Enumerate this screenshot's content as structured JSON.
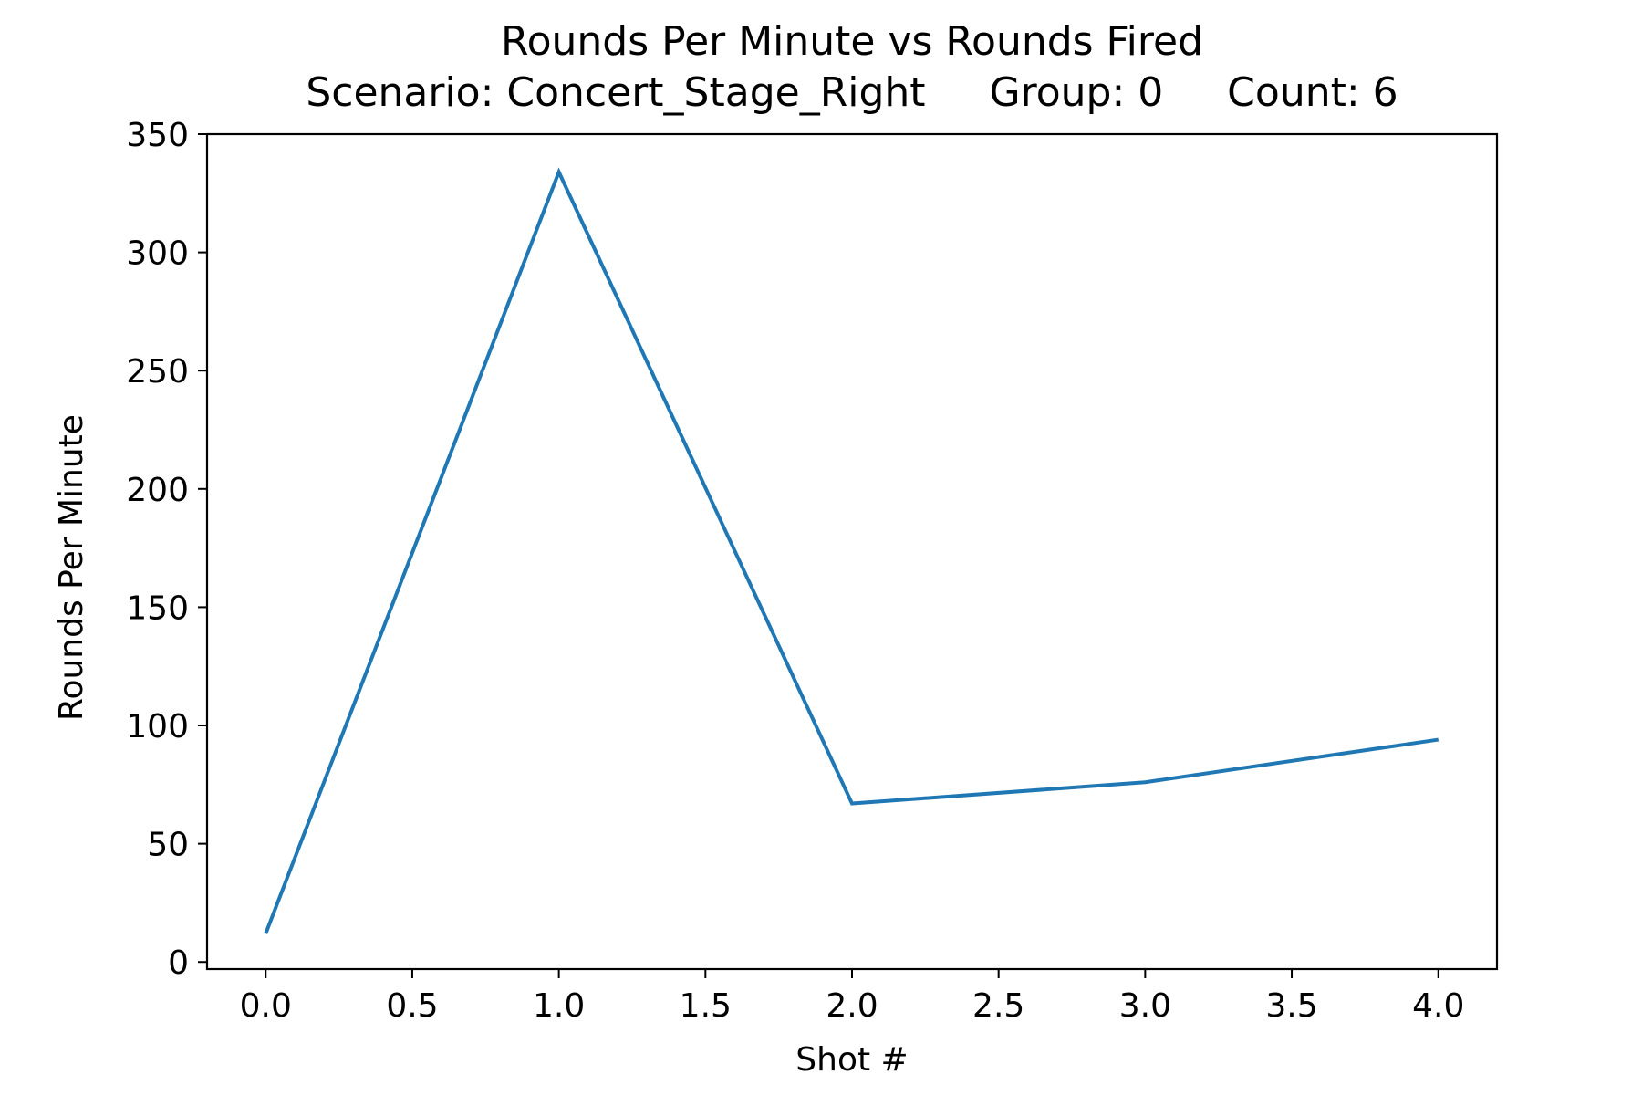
{
  "chart_data": {
    "type": "line",
    "title": "Rounds Per Minute vs Rounds Fired",
    "subtitle": "Scenario: Concert_Stage_Right     Group: 0     Count: 6",
    "xlabel": "Shot #",
    "ylabel": "Rounds Per Minute",
    "x": [
      0,
      1,
      2,
      3,
      4
    ],
    "series": [
      {
        "values": [
          12,
          334,
          67,
          76,
          94
        ],
        "color": "#1f77b4"
      }
    ],
    "xlim": [
      -0.2,
      4.2
    ],
    "ylim": [
      -3,
      350
    ],
    "xticks": [
      {
        "value": 0.0,
        "label": "0.0"
      },
      {
        "value": 0.5,
        "label": "0.5"
      },
      {
        "value": 1.0,
        "label": "1.0"
      },
      {
        "value": 1.5,
        "label": "1.5"
      },
      {
        "value": 2.0,
        "label": "2.0"
      },
      {
        "value": 2.5,
        "label": "2.5"
      },
      {
        "value": 3.0,
        "label": "3.0"
      },
      {
        "value": 3.5,
        "label": "3.5"
      },
      {
        "value": 4.0,
        "label": "4.0"
      }
    ],
    "yticks": [
      {
        "value": 0,
        "label": "0"
      },
      {
        "value": 50,
        "label": "50"
      },
      {
        "value": 100,
        "label": "100"
      },
      {
        "value": 150,
        "label": "150"
      },
      {
        "value": 200,
        "label": "200"
      },
      {
        "value": 250,
        "label": "250"
      },
      {
        "value": 300,
        "label": "300"
      },
      {
        "value": 350,
        "label": "350"
      }
    ],
    "grid": false,
    "legend": "none"
  }
}
